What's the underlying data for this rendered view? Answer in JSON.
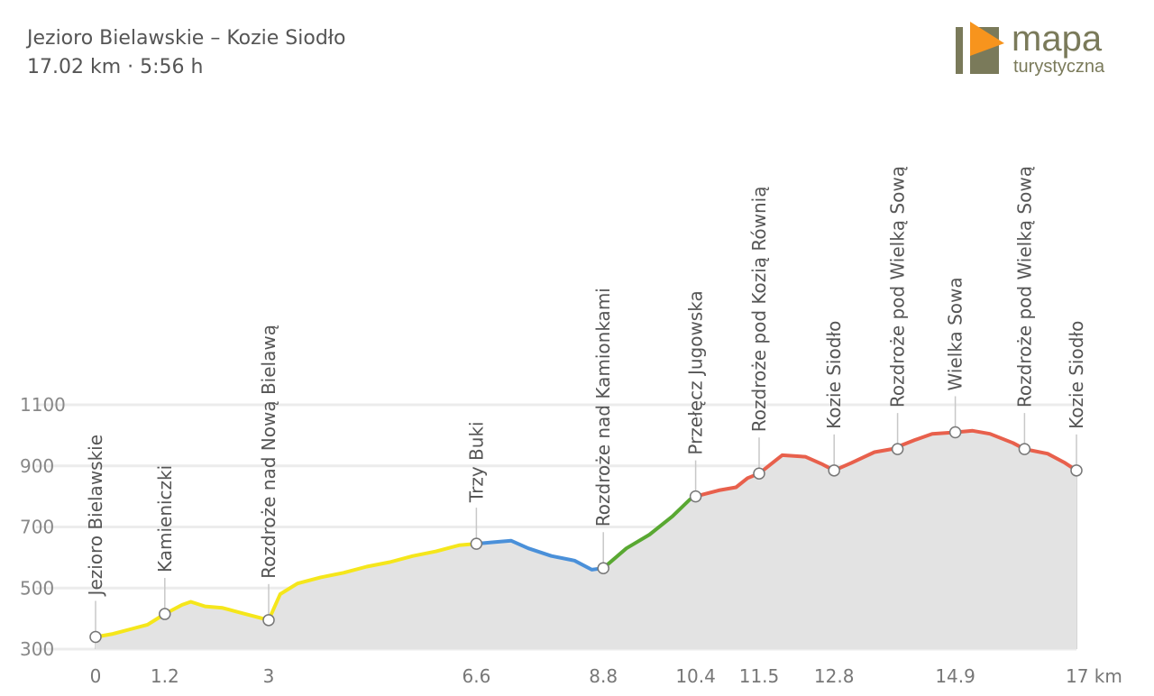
{
  "header": {
    "title": "Jezioro Bielawskie – Kozie Siodło",
    "subtitle": "17.02 km · 5:56 h"
  },
  "logo": {
    "word1": "mapa",
    "word2": "turystyczna",
    "accent": "#f7941d",
    "dark": "#7a7a5a"
  },
  "chart_data": {
    "type": "area",
    "title": "Jezioro Bielawskie – Kozie Siodło",
    "xlabel": "km",
    "ylabel": "",
    "xlim": [
      0,
      17
    ],
    "ylim": [
      300,
      1100
    ],
    "y_ticks": [
      300,
      500,
      700,
      900,
      1100
    ],
    "x_ticks": [
      {
        "value": 0,
        "label": "0"
      },
      {
        "value": 1.2,
        "label": "1.2"
      },
      {
        "value": 3,
        "label": "3"
      },
      {
        "value": 6.6,
        "label": "6.6"
      },
      {
        "value": 8.8,
        "label": "8.8"
      },
      {
        "value": 10.4,
        "label": "10.4"
      },
      {
        "value": 11.5,
        "label": "11.5"
      },
      {
        "value": 12.8,
        "label": "12.8"
      },
      {
        "value": 14.9,
        "label": "14.9"
      },
      {
        "value": 17,
        "label": "17 km"
      }
    ],
    "grid": true,
    "fill_color": "#e3e3e3",
    "profile": [
      [
        0,
        340
      ],
      [
        0.3,
        350
      ],
      [
        0.6,
        365
      ],
      [
        0.9,
        380
      ],
      [
        1.2,
        415
      ],
      [
        1.5,
        445
      ],
      [
        1.65,
        455
      ],
      [
        1.9,
        440
      ],
      [
        2.2,
        435
      ],
      [
        2.5,
        420
      ],
      [
        2.8,
        405
      ],
      [
        3.0,
        395
      ],
      [
        3.2,
        480
      ],
      [
        3.5,
        515
      ],
      [
        3.9,
        535
      ],
      [
        4.3,
        550
      ],
      [
        4.7,
        570
      ],
      [
        5.1,
        585
      ],
      [
        5.5,
        605
      ],
      [
        5.9,
        620
      ],
      [
        6.3,
        640
      ],
      [
        6.6,
        645
      ],
      [
        6.9,
        650
      ],
      [
        7.2,
        655
      ],
      [
        7.5,
        630
      ],
      [
        7.9,
        605
      ],
      [
        8.3,
        590
      ],
      [
        8.6,
        560
      ],
      [
        8.8,
        565
      ],
      [
        9.2,
        630
      ],
      [
        9.6,
        675
      ],
      [
        10.0,
        735
      ],
      [
        10.3,
        790
      ],
      [
        10.4,
        800
      ],
      [
        10.8,
        820
      ],
      [
        11.1,
        830
      ],
      [
        11.3,
        860
      ],
      [
        11.5,
        875
      ],
      [
        11.9,
        935
      ],
      [
        12.3,
        930
      ],
      [
        12.6,
        905
      ],
      [
        12.8,
        885
      ],
      [
        13.1,
        910
      ],
      [
        13.5,
        945
      ],
      [
        13.8,
        955
      ],
      [
        14.2,
        985
      ],
      [
        14.5,
        1005
      ],
      [
        14.9,
        1010
      ],
      [
        15.2,
        1015
      ],
      [
        15.5,
        1005
      ],
      [
        15.9,
        975
      ],
      [
        16.1,
        955
      ],
      [
        16.5,
        940
      ],
      [
        16.8,
        910
      ],
      [
        17.0,
        885
      ]
    ],
    "segments": [
      {
        "from": 0,
        "to": 6.6,
        "color": "#f5e61b"
      },
      {
        "from": 6.6,
        "to": 8.8,
        "color": "#4a90d9"
      },
      {
        "from": 8.8,
        "to": 10.4,
        "color": "#59a832"
      },
      {
        "from": 10.4,
        "to": 17,
        "color": "#e8604c"
      }
    ],
    "waypoints": [
      {
        "name": "Jezioro Bielawskie",
        "x": 0,
        "elev": 340
      },
      {
        "name": "Kamieniczki",
        "x": 1.2,
        "elev": 415
      },
      {
        "name": "Rozdroże nad Nową Bielawą",
        "x": 3.0,
        "elev": 395
      },
      {
        "name": "Trzy Buki",
        "x": 6.6,
        "elev": 645
      },
      {
        "name": "Rozdroże nad Kamionkami",
        "x": 8.8,
        "elev": 565
      },
      {
        "name": "Przełęcz Jugowska",
        "x": 10.4,
        "elev": 800
      },
      {
        "name": "Rozdroże pod Kozią Równią",
        "x": 11.5,
        "elev": 875
      },
      {
        "name": "Kozie Siodło",
        "x": 12.8,
        "elev": 885
      },
      {
        "name": "Rozdroże pod Wielką Sową",
        "x": 13.9,
        "elev": 955
      },
      {
        "name": "Wielka Sowa",
        "x": 14.9,
        "elev": 1010
      },
      {
        "name": "Rozdroże pod Wielką Sową",
        "x": 16.1,
        "elev": 955
      },
      {
        "name": "Kozie Siodło",
        "x": 17.0,
        "elev": 885
      }
    ]
  }
}
